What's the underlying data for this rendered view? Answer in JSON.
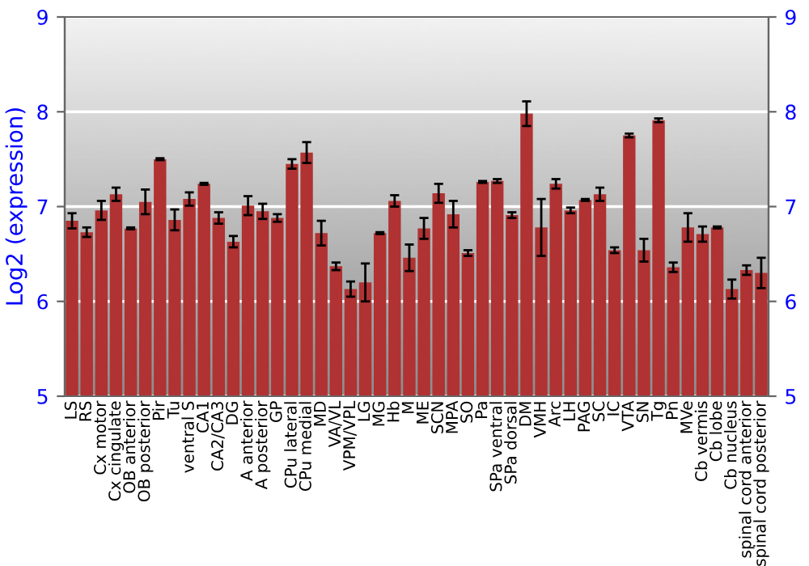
{
  "chart_data": {
    "type": "bar",
    "ylabel": "Log2 (expression)",
    "categories": [
      "LS",
      "RS",
      "Cx motor",
      "Cx cingulate",
      "OB anterior",
      "OB posterior",
      "Pir",
      "Tu",
      "ventral S",
      "CA1",
      "CA2/CA3",
      "DG",
      "A anterior",
      "A posterior",
      "GP",
      "CPu lateral",
      "CPu medial",
      "MD",
      "VA/VL",
      "VPM/VPL",
      "LG",
      "MG",
      "Hb",
      "M",
      "ME",
      "SCN",
      "MPA",
      "SO",
      "Pa",
      "SPa ventral",
      "SPa dorsal",
      "DM",
      "VMH",
      "Arc",
      "LH",
      "PAG",
      "SC",
      "IC",
      "VTA",
      "SN",
      "Tg",
      "Pn",
      "MVe",
      "Cb vermis",
      "Cb lobe",
      "Cb nucleus",
      "spinal cord anterior",
      "spinal cord posterior"
    ],
    "values": [
      6.85,
      6.73,
      6.96,
      7.13,
      6.77,
      7.05,
      7.5,
      6.86,
      7.08,
      7.24,
      6.88,
      6.63,
      7.01,
      6.95,
      6.88,
      7.45,
      7.57,
      6.72,
      6.37,
      6.13,
      6.2,
      6.72,
      7.06,
      6.46,
      6.77,
      7.14,
      6.92,
      6.51,
      7.26,
      7.27,
      6.91,
      7.98,
      6.78,
      7.24,
      6.96,
      7.07,
      7.13,
      6.54,
      7.75,
      6.54,
      7.91,
      6.36,
      6.78,
      6.71,
      6.78,
      6.13,
      6.33,
      6.3
    ],
    "errors": [
      0.08,
      0.05,
      0.1,
      0.07,
      0.01,
      0.13,
      0.01,
      0.11,
      0.07,
      0.01,
      0.06,
      0.06,
      0.1,
      0.08,
      0.04,
      0.05,
      0.11,
      0.13,
      0.04,
      0.08,
      0.2,
      0.01,
      0.06,
      0.14,
      0.11,
      0.1,
      0.14,
      0.03,
      0.01,
      0.02,
      0.03,
      0.13,
      0.3,
      0.05,
      0.03,
      0.01,
      0.07,
      0.03,
      0.02,
      0.12,
      0.02,
      0.05,
      0.15,
      0.08,
      0.01,
      0.1,
      0.05,
      0.16
    ],
    "color": "#b03232",
    "ylim": [
      5,
      9
    ],
    "yticks": [
      5,
      6,
      7,
      8,
      9
    ],
    "y2lim": [
      5,
      9
    ],
    "y2ticks": [
      5,
      6,
      7,
      8,
      9
    ],
    "grid": "y"
  }
}
